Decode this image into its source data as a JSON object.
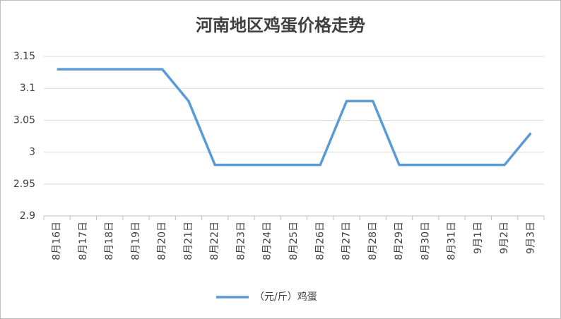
{
  "chart_data": {
    "type": "line",
    "title": "河南地区鸡蛋价格走势",
    "categories": [
      "8月16日",
      "8月17日",
      "8月18日",
      "8月19日",
      "8月20日",
      "8月21日",
      "8月22日",
      "8月23日",
      "8月24日",
      "8月25日",
      "8月26日",
      "8月27日",
      "8月28日",
      "8月29日",
      "8月30日",
      "8月31日",
      "9月1日",
      "9月2日",
      "9月3日"
    ],
    "series": [
      {
        "name": "（元/斤）鸡蛋",
        "color": "#5b9bd5",
        "values": [
          3.13,
          3.13,
          3.13,
          3.13,
          3.13,
          3.08,
          2.98,
          2.98,
          2.98,
          2.98,
          2.98,
          3.08,
          3.08,
          2.98,
          2.98,
          2.98,
          2.98,
          2.98,
          3.03
        ]
      }
    ],
    "ylim": [
      2.9,
      3.15
    ],
    "yticks": [
      2.9,
      2.95,
      3,
      3.05,
      3.1,
      3.15
    ],
    "grid": true,
    "legend": "bottom"
  }
}
